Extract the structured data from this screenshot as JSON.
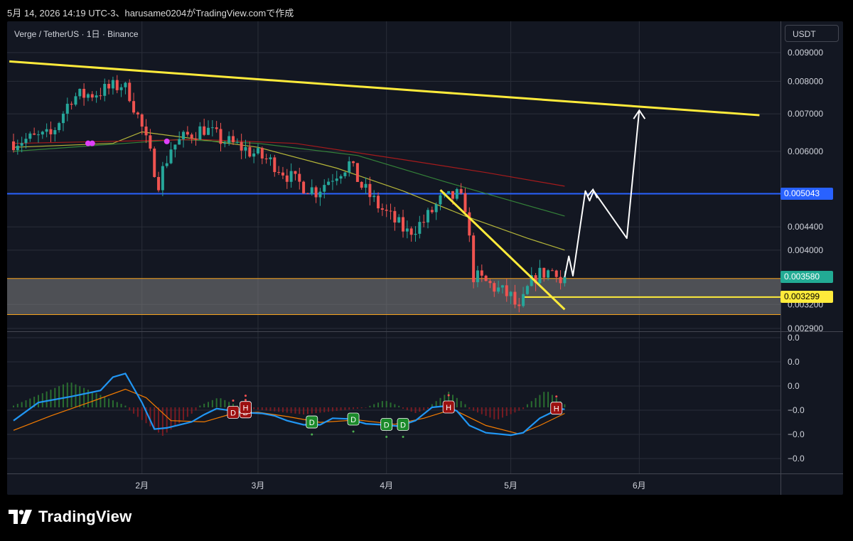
{
  "header": {
    "caption": "5月 14, 2026 14:19 UTC-3、harusame0204がTradingView.comで作成"
  },
  "symbol": {
    "title": "Verge / TetherUS · 1日 · Binance"
  },
  "currency_button": "USDT",
  "footer": {
    "brand": "TradingView"
  },
  "price_tags": [
    {
      "label": "0.005043",
      "color": "#2962ff",
      "text_color": "#ffffff"
    },
    {
      "label": "0.003580",
      "color": "#22ab94",
      "text_color": "#ffffff"
    },
    {
      "label": "0.003299",
      "color": "#ffeb3b",
      "text_color": "#000000"
    }
  ],
  "colors": {
    "up": "#26a69a",
    "down": "#ef5350",
    "trendline": "#ffeb3b",
    "support": "#2962ff",
    "zone": "#808080"
  },
  "chart_data": [
    {
      "type": "candlestick",
      "title": "Verge / TetherUS · 1日 · Binance",
      "x_tick_labels": [
        "2月",
        "3月",
        "4月",
        "5月",
        "6月"
      ],
      "y_tick_labels": [
        "0.009000",
        "0.008000",
        "0.007000",
        "0.006000",
        "0.004400",
        "0.004000",
        "0.003200",
        "0.002900"
      ],
      "y_tick_values": [
        0.009,
        0.008,
        0.007,
        0.006,
        0.0044,
        0.004,
        0.0032,
        0.0029
      ],
      "y_scale": "log",
      "ylim": [
        0.00285,
        0.0094
      ],
      "close_path": [
        {
          "d": "2026-01-01",
          "c": 0.00625
        },
        {
          "d": "2026-01-10",
          "c": 0.0064
        },
        {
          "d": "2026-01-15",
          "c": 0.0075
        },
        {
          "d": "2026-01-20",
          "c": 0.0076
        },
        {
          "d": "2026-01-25",
          "c": 0.0078
        },
        {
          "d": "2026-01-27",
          "c": 0.0079
        },
        {
          "d": "2026-01-29",
          "c": 0.0076
        },
        {
          "d": "2026-02-01",
          "c": 0.0066
        },
        {
          "d": "2026-02-03",
          "c": 0.0059
        },
        {
          "d": "2026-02-05",
          "c": 0.0053
        },
        {
          "d": "2026-02-08",
          "c": 0.0061
        },
        {
          "d": "2026-02-12",
          "c": 0.0064
        },
        {
          "d": "2026-02-16",
          "c": 0.0066
        },
        {
          "d": "2026-02-20",
          "c": 0.0063
        },
        {
          "d": "2026-02-25",
          "c": 0.0061
        },
        {
          "d": "2026-03-01",
          "c": 0.0059
        },
        {
          "d": "2026-03-05",
          "c": 0.0057
        },
        {
          "d": "2026-03-10",
          "c": 0.0053
        },
        {
          "d": "2026-03-15",
          "c": 0.0051
        },
        {
          "d": "2026-03-20",
          "c": 0.0055
        },
        {
          "d": "2026-03-23",
          "c": 0.0057
        },
        {
          "d": "2026-03-26",
          "c": 0.0052
        },
        {
          "d": "2026-03-30",
          "c": 0.0048
        },
        {
          "d": "2026-04-03",
          "c": 0.0045
        },
        {
          "d": "2026-04-06",
          "c": 0.0043
        },
        {
          "d": "2026-04-10",
          "c": 0.0045
        },
        {
          "d": "2026-04-14",
          "c": 0.0049
        },
        {
          "d": "2026-04-18",
          "c": 0.005
        },
        {
          "d": "2026-04-20",
          "c": 0.0048
        },
        {
          "d": "2026-04-22",
          "c": 0.0036
        },
        {
          "d": "2026-04-25",
          "c": 0.0035
        },
        {
          "d": "2026-04-28",
          "c": 0.0034
        },
        {
          "d": "2026-05-01",
          "c": 0.0033
        },
        {
          "d": "2026-05-03",
          "c": 0.0031
        },
        {
          "d": "2026-05-05",
          "c": 0.0034
        },
        {
          "d": "2026-05-07",
          "c": 0.0036
        },
        {
          "d": "2026-05-09",
          "c": 0.00365
        },
        {
          "d": "2026-05-12",
          "c": 0.0037
        },
        {
          "d": "2026-05-13",
          "c": 0.0035
        },
        {
          "d": "2026-05-14",
          "c": 0.00358
        }
      ],
      "moving_averages": [
        {
          "color": "#c8c83c",
          "points": [
            [
              "2026-01-01",
              0.0061
            ],
            [
              "2026-01-25",
              0.0062
            ],
            [
              "2026-02-01",
              0.0065
            ],
            [
              "2026-02-15",
              0.0063
            ],
            [
              "2026-03-01",
              0.0061
            ],
            [
              "2026-03-20",
              0.0056
            ],
            [
              "2026-04-05",
              0.0051
            ],
            [
              "2026-04-20",
              0.0046
            ],
            [
              "2026-05-05",
              0.0042
            ],
            [
              "2026-05-14",
              0.004
            ]
          ]
        },
        {
          "color": "#388e3c",
          "points": [
            [
              "2026-01-01",
              0.006
            ],
            [
              "2026-02-10",
              0.0063
            ],
            [
              "2026-03-01",
              0.0062
            ],
            [
              "2026-03-25",
              0.0059
            ],
            [
              "2026-04-15",
              0.0053
            ],
            [
              "2026-05-01",
              0.0049
            ],
            [
              "2026-05-14",
              0.0046
            ]
          ]
        },
        {
          "color": "#b71c1c",
          "points": [
            [
              "2026-01-01",
              0.0062
            ],
            [
              "2026-02-15",
              0.0063
            ],
            [
              "2026-03-10",
              0.0062
            ],
            [
              "2026-04-05",
              0.0058
            ],
            [
              "2026-04-25",
              0.0055
            ],
            [
              "2026-05-14",
              0.0052
            ]
          ]
        }
      ],
      "annotations": {
        "descending_trendline": [
          [
            "2025-12-31",
            0.00868
          ],
          [
            "2026-06-30",
            0.00696
          ]
        ],
        "short_trendline": [
          [
            "2026-04-14",
            0.00512
          ],
          [
            "2026-05-14",
            0.00319
          ]
        ],
        "horizontal_level": 0.005043,
        "entry_level": 0.003299,
        "support_zone": [
          0.00307,
          0.00356
        ],
        "forecast_path": [
          [
            "2026-05-14",
            0.00358
          ],
          [
            "2026-05-15",
            0.0039
          ],
          [
            "2026-05-16",
            0.0036
          ],
          [
            "2026-05-19",
            0.0051
          ],
          [
            "2026-05-20",
            0.0049
          ],
          [
            "2026-05-21",
            0.0051
          ],
          [
            "2026-05-29",
            0.0042
          ],
          [
            "2026-06-01",
            0.0071
          ]
        ]
      }
    },
    {
      "type": "oscillator",
      "y_tick_labels": [
        "0.0",
        "0.0",
        "0.0",
        "−0.0",
        "−0.0",
        "−0.0"
      ],
      "ylim": [
        -1.1,
        1.1
      ],
      "main_line": [
        [
          "2026-01-01",
          -0.55
        ],
        [
          "2026-01-07",
          0.2
        ],
        [
          "2026-01-15",
          0.45
        ],
        [
          "2026-01-22",
          0.7
        ],
        [
          "2026-01-25",
          1.25
        ],
        [
          "2026-01-28",
          1.4
        ],
        [
          "2026-02-01",
          0.2
        ],
        [
          "2026-02-04",
          -0.9
        ],
        [
          "2026-02-07",
          -0.85
        ],
        [
          "2026-02-13",
          -0.6
        ],
        [
          "2026-02-16",
          -0.3
        ],
        [
          "2026-02-19",
          -0.05
        ],
        [
          "2026-02-23",
          -0.15
        ],
        [
          "2026-02-26",
          -0.22
        ],
        [
          "2026-03-02",
          -0.25
        ],
        [
          "2026-03-05",
          -0.35
        ],
        [
          "2026-03-08",
          -0.55
        ],
        [
          "2026-03-12",
          -0.72
        ],
        [
          "2026-03-16",
          -0.72
        ],
        [
          "2026-03-19",
          -0.45
        ],
        [
          "2026-03-23",
          -0.48
        ],
        [
          "2026-03-27",
          -0.68
        ],
        [
          "2026-03-31",
          -0.72
        ],
        [
          "2026-04-04",
          -0.78
        ],
        [
          "2026-04-08",
          -0.55
        ],
        [
          "2026-04-12",
          0.0
        ],
        [
          "2026-04-15",
          0.05
        ],
        [
          "2026-04-18",
          -0.15
        ],
        [
          "2026-04-21",
          -0.75
        ],
        [
          "2026-04-25",
          -1.05
        ],
        [
          "2026-05-01",
          -1.15
        ],
        [
          "2026-05-04",
          -1.05
        ],
        [
          "2026-05-08",
          -0.45
        ],
        [
          "2026-05-11",
          -0.2
        ],
        [
          "2026-05-12",
          -0.05
        ],
        [
          "2026-05-14",
          -0.08
        ]
      ],
      "signal_line": [
        [
          "2026-01-01",
          -0.95
        ],
        [
          "2026-01-10",
          -0.35
        ],
        [
          "2026-01-20",
          0.25
        ],
        [
          "2026-01-28",
          0.75
        ],
        [
          "2026-02-02",
          0.4
        ],
        [
          "2026-02-08",
          -0.55
        ],
        [
          "2026-02-16",
          -0.6
        ],
        [
          "2026-02-23",
          -0.25
        ],
        [
          "2026-03-01",
          -0.2
        ],
        [
          "2026-03-08",
          -0.38
        ],
        [
          "2026-03-16",
          -0.62
        ],
        [
          "2026-03-25",
          -0.52
        ],
        [
          "2026-04-03",
          -0.7
        ],
        [
          "2026-04-10",
          -0.45
        ],
        [
          "2026-04-17",
          -0.08
        ],
        [
          "2026-04-25",
          -0.75
        ],
        [
          "2026-05-03",
          -1.1
        ],
        [
          "2026-05-08",
          -0.75
        ],
        [
          "2026-05-14",
          -0.25
        ]
      ],
      "histogram": [
        {
          "from": "2026-01-01",
          "to": "2026-01-28",
          "peak": 0.9,
          "sign": "up"
        },
        {
          "from": "2026-01-29",
          "to": "2026-02-14",
          "peak": -1.0,
          "sign": "down"
        },
        {
          "from": "2026-02-15",
          "to": "2026-02-24",
          "peak": 0.35,
          "sign": "up"
        },
        {
          "from": "2026-02-25",
          "to": "2026-03-27",
          "peak": -0.25,
          "sign": "down"
        },
        {
          "from": "2026-03-28",
          "to": "2026-04-04",
          "peak": 0.25,
          "sign": "up"
        },
        {
          "from": "2026-04-05",
          "to": "2026-04-11",
          "peak": -0.2,
          "sign": "down"
        },
        {
          "from": "2026-04-12",
          "to": "2026-04-20",
          "peak": 0.55,
          "sign": "up"
        },
        {
          "from": "2026-04-21",
          "to": "2026-05-04",
          "peak": -0.45,
          "sign": "down"
        },
        {
          "from": "2026-05-05",
          "to": "2026-05-14",
          "peak": 0.6,
          "sign": "up"
        }
      ],
      "markers": [
        {
          "d": "2026-02-23",
          "v": -0.22,
          "label": "D",
          "kind": "D_red"
        },
        {
          "d": "2026-02-26",
          "v": -0.2,
          "label": "D",
          "kind": "D_red"
        },
        {
          "d": "2026-02-26",
          "v": -0.02,
          "label": "H",
          "kind": "H"
        },
        {
          "d": "2026-03-14",
          "v": -0.62,
          "label": "D",
          "kind": "D_green"
        },
        {
          "d": "2026-03-24",
          "v": -0.5,
          "label": "D",
          "kind": "D_green"
        },
        {
          "d": "2026-04-01",
          "v": -0.72,
          "label": "D",
          "kind": "D_green"
        },
        {
          "d": "2026-04-05",
          "v": -0.72,
          "label": "D",
          "kind": "D_green"
        },
        {
          "d": "2026-04-16",
          "v": 0.0,
          "label": "H",
          "kind": "H"
        },
        {
          "d": "2026-05-12",
          "v": -0.05,
          "label": "H",
          "kind": "H"
        }
      ]
    }
  ]
}
